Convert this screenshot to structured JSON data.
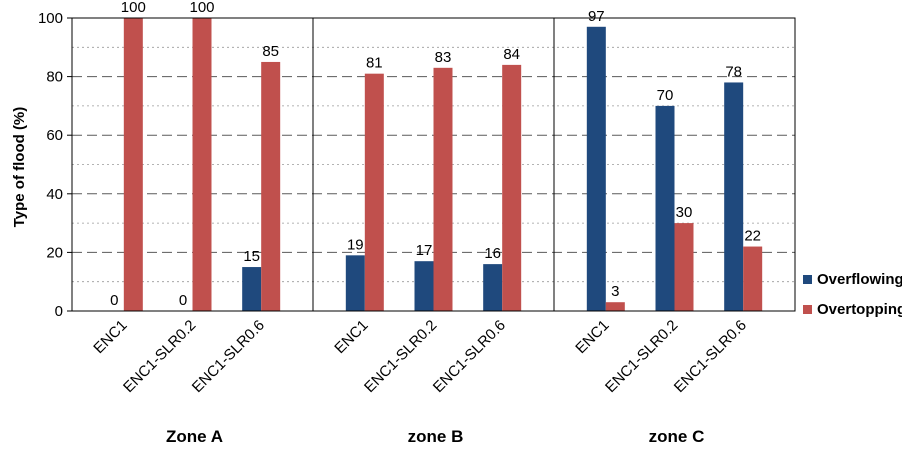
{
  "chart_data": {
    "type": "bar",
    "ylabel": "Type of flood (%)",
    "ylim": [
      0,
      100
    ],
    "y_ticks": [
      "0",
      "20",
      "40",
      "60",
      "80",
      "100"
    ],
    "grid": "horizontal dashed, every 10 (major 20)",
    "legend_position": "right",
    "groups": [
      {
        "label": "Zone A",
        "categories": [
          "ENC1",
          "ENC1-SLR0.2",
          "ENC1-SLR0.6"
        ]
      },
      {
        "label": "zone B",
        "categories": [
          "ENC1",
          "ENC1-SLR0.2",
          "ENC1-SLR0.6"
        ]
      },
      {
        "label": "zone C",
        "categories": [
          "ENC1",
          "ENC1-SLR0.2",
          "ENC1-SLR0.6"
        ]
      }
    ],
    "series": [
      {
        "name": "Overflowing",
        "color": "#1F497D",
        "values": [
          0,
          0,
          15,
          19,
          17,
          16,
          97,
          70,
          78
        ]
      },
      {
        "name": "Overtopping",
        "color": "#C0504D",
        "values": [
          100,
          100,
          85,
          81,
          83,
          84,
          3,
          30,
          22
        ]
      }
    ]
  }
}
